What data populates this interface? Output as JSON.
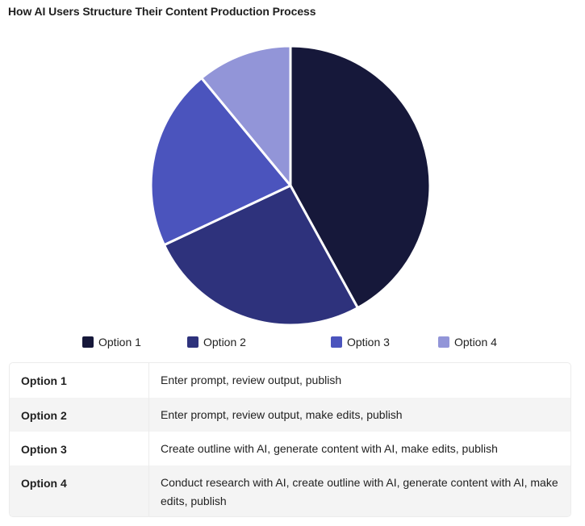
{
  "title": "How AI Users Structure Their Content Production Process",
  "colors": {
    "option1": "#16183a",
    "option2": "#2e327c",
    "option3": "#4b54bd",
    "option4": "#9295d8"
  },
  "legend": [
    {
      "label": "Option 1",
      "color": "#16183a"
    },
    {
      "label": "Option 2",
      "color": "#2e327c"
    },
    {
      "label": "Option 3",
      "color": "#4b54bd"
    },
    {
      "label": "Option 4",
      "color": "#9295d8"
    }
  ],
  "table": {
    "rows": [
      {
        "key": "Option 1",
        "value": "Enter prompt, review output, publish"
      },
      {
        "key": "Option 2",
        "value": "Enter prompt, review output, make edits, publish"
      },
      {
        "key": "Option 3",
        "value": "Create outline with AI, generate content with AI, make edits, publish"
      },
      {
        "key": "Option 4",
        "value": "Conduct research with AI, create outline with AI, generate content with AI, make edits, publish"
      }
    ]
  },
  "chart_data": {
    "type": "pie",
    "title": "How AI Users Structure Their Content Production Process",
    "categories": [
      "Option 1",
      "Option 2",
      "Option 3",
      "Option 4"
    ],
    "values": [
      42,
      26,
      21,
      11
    ],
    "units": "percent (estimated from slice angles, no labels shown)",
    "colors": [
      "#16183a",
      "#2e327c",
      "#4b54bd",
      "#9295d8"
    ],
    "start_angle": "12 o'clock, clockwise",
    "legend_position": "bottom",
    "data_labels": false
  }
}
